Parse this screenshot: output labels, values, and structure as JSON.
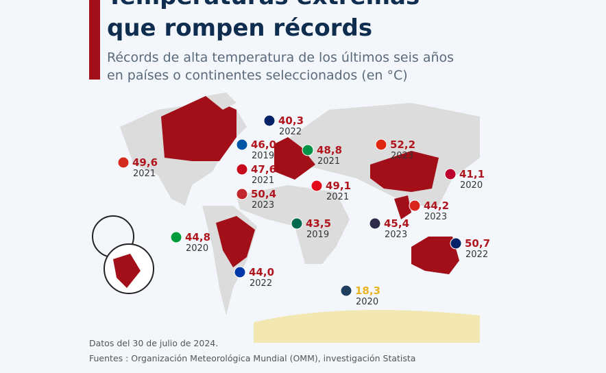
{
  "header": {
    "title_lines": [
      "Temperaturas extremas",
      "que rompen récords"
    ],
    "subtitle_lines": [
      "Récords de alta temperatura de los últimos seis años",
      "en países o continentes seleccionados (en °C)"
    ]
  },
  "records": [
    {
      "value": "49,6",
      "year": "2021"
    },
    {
      "value": "40,3",
      "year": "2022"
    },
    {
      "value": "46,0",
      "year": "2019"
    },
    {
      "value": "47,6",
      "year": "2021"
    },
    {
      "value": "50,4",
      "year": "2023"
    },
    {
      "value": "48,8",
      "year": "2021"
    },
    {
      "value": "49,1",
      "year": "2021"
    },
    {
      "value": "52,2",
      "year": "2023"
    },
    {
      "value": "41,1",
      "year": "2020"
    },
    {
      "value": "44,2",
      "year": "2023"
    },
    {
      "value": "45,4",
      "year": "2023"
    },
    {
      "value": "43,5",
      "year": "2019"
    },
    {
      "value": "50,7",
      "year": "2022"
    },
    {
      "value": "44,8",
      "year": "2020"
    },
    {
      "value": "44,0",
      "year": "2022"
    },
    {
      "value": "18,3",
      "year": "2020"
    }
  ],
  "footer": {
    "date": "Datos del 30 de julio de 2024.",
    "sources": "Fuentes : Organización Meteorológica Mundial (OMM), investigación Statista"
  }
}
